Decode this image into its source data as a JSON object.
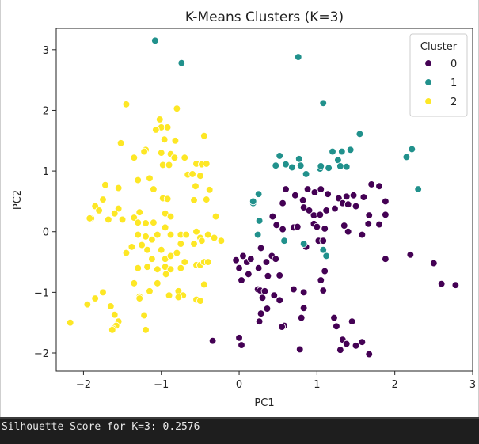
{
  "chart_data": {
    "type": "scatter",
    "title": "K-Means Clusters (K=3)",
    "xlabel": "PC1",
    "ylabel": "PC2",
    "xlim": [
      -2.35,
      3.0
    ],
    "ylim": [
      -2.3,
      3.35
    ],
    "xticks": [
      -2,
      -1,
      0,
      1,
      2,
      3
    ],
    "yticks": [
      -2,
      -1,
      0,
      1,
      2,
      3
    ],
    "grid": false,
    "legend": {
      "title": "Cluster",
      "position": "top-right"
    },
    "series": [
      {
        "name": "0",
        "color": "#440154",
        "points": [
          [
            0.6,
            0.7
          ],
          [
            0.72,
            0.6
          ],
          [
            0.82,
            0.52
          ],
          [
            0.88,
            0.7
          ],
          [
            0.97,
            0.65
          ],
          [
            1.05,
            0.7
          ],
          [
            1.14,
            0.62
          ],
          [
            1.28,
            0.55
          ],
          [
            1.38,
            0.58
          ],
          [
            1.47,
            0.6
          ],
          [
            1.6,
            0.57
          ],
          [
            1.7,
            0.78
          ],
          [
            1.8,
            0.75
          ],
          [
            1.88,
            0.5
          ],
          [
            1.88,
            0.28
          ],
          [
            0.56,
            0.47
          ],
          [
            0.83,
            0.4
          ],
          [
            0.9,
            0.35
          ],
          [
            0.96,
            0.27
          ],
          [
            1.04,
            0.28
          ],
          [
            1.12,
            0.35
          ],
          [
            1.23,
            0.38
          ],
          [
            1.33,
            0.47
          ],
          [
            1.4,
            0.45
          ],
          [
            1.5,
            0.42
          ],
          [
            1.67,
            0.27
          ],
          [
            1.35,
            0.1
          ],
          [
            1.66,
            0.13
          ],
          [
            1.8,
            0.12
          ],
          [
            0.43,
            0.25
          ],
          [
            0.48,
            0.11
          ],
          [
            0.56,
            0.04
          ],
          [
            0.7,
            0.07
          ],
          [
            0.75,
            0.08
          ],
          [
            0.96,
            0.13
          ],
          [
            1.0,
            0.08
          ],
          [
            1.1,
            0.05
          ],
          [
            1.4,
            0.0
          ],
          [
            1.58,
            -0.05
          ],
          [
            1.88,
            -0.45
          ],
          [
            2.2,
            -0.38
          ],
          [
            2.5,
            -0.52
          ],
          [
            2.6,
            -0.86
          ],
          [
            2.78,
            -0.88
          ],
          [
            1.02,
            -0.15
          ],
          [
            1.08,
            -0.15
          ],
          [
            0.86,
            -0.25
          ],
          [
            1.1,
            -0.65
          ],
          [
            1.05,
            -0.8
          ],
          [
            1.08,
            -0.97
          ],
          [
            0.28,
            -0.27
          ],
          [
            0.35,
            -0.5
          ],
          [
            0.25,
            -0.6
          ],
          [
            0.05,
            -0.4
          ],
          [
            0.1,
            -0.5
          ],
          [
            0.15,
            -0.45
          ],
          [
            0.0,
            -0.6
          ],
          [
            -0.04,
            -0.47
          ],
          [
            0.03,
            -0.8
          ],
          [
            0.12,
            -0.7
          ],
          [
            0.24,
            -0.95
          ],
          [
            0.27,
            -0.97
          ],
          [
            0.33,
            -0.98
          ],
          [
            0.42,
            -0.4
          ],
          [
            0.47,
            -0.45
          ],
          [
            0.37,
            -0.73
          ],
          [
            0.52,
            -0.72
          ],
          [
            0.3,
            -1.09
          ],
          [
            0.45,
            -1.05
          ],
          [
            0.52,
            -1.13
          ],
          [
            0.7,
            -0.95
          ],
          [
            0.83,
            -1.0
          ],
          [
            0.83,
            -1.26
          ],
          [
            0.8,
            -1.42
          ],
          [
            0.36,
            -1.27
          ],
          [
            0.28,
            -1.35
          ],
          [
            0.26,
            -1.48
          ],
          [
            0.58,
            -1.55
          ],
          [
            0.55,
            -1.57
          ],
          [
            0.0,
            -1.75
          ],
          [
            0.03,
            -1.87
          ],
          [
            -0.34,
            -1.8
          ],
          [
            0.78,
            -1.94
          ],
          [
            1.22,
            -1.42
          ],
          [
            1.25,
            -1.56
          ],
          [
            1.45,
            -1.48
          ],
          [
            1.33,
            -1.78
          ],
          [
            1.38,
            -1.85
          ],
          [
            1.5,
            -1.88
          ],
          [
            1.58,
            -1.82
          ],
          [
            1.3,
            -1.95
          ],
          [
            1.67,
            -2.02
          ]
        ]
      },
      {
        "name": "1",
        "color": "#21918c",
        "points": [
          [
            -1.08,
            3.15
          ],
          [
            -0.74,
            2.78
          ],
          [
            0.76,
            2.88
          ],
          [
            1.08,
            2.12
          ],
          [
            1.55,
            1.61
          ],
          [
            1.43,
            1.35
          ],
          [
            1.2,
            1.32
          ],
          [
            1.27,
            1.18
          ],
          [
            1.32,
            1.32
          ],
          [
            1.38,
            1.07
          ],
          [
            2.22,
            1.36
          ],
          [
            2.15,
            1.23
          ],
          [
            2.3,
            0.7
          ],
          [
            0.47,
            1.09
          ],
          [
            0.6,
            1.11
          ],
          [
            0.68,
            1.06
          ],
          [
            0.77,
            1.2
          ],
          [
            0.79,
            1.09
          ],
          [
            1.04,
            1.04
          ],
          [
            1.05,
            1.08
          ],
          [
            1.15,
            1.05
          ],
          [
            1.3,
            1.08
          ],
          [
            0.52,
            1.25
          ],
          [
            0.86,
            0.95
          ],
          [
            0.25,
            0.62
          ],
          [
            0.18,
            0.47
          ],
          [
            0.18,
            0.5
          ],
          [
            0.26,
            0.18
          ],
          [
            0.24,
            -0.05
          ],
          [
            0.58,
            -0.15
          ],
          [
            0.83,
            -0.2
          ],
          [
            1.08,
            -0.3
          ],
          [
            1.12,
            -0.4
          ]
        ]
      },
      {
        "name": "2",
        "color": "#fde725",
        "points": [
          [
            -1.45,
            2.1
          ],
          [
            -0.8,
            2.03
          ],
          [
            -1.02,
            1.85
          ],
          [
            -1.0,
            1.72
          ],
          [
            -0.92,
            1.72
          ],
          [
            -1.07,
            1.68
          ],
          [
            -1.52,
            1.46
          ],
          [
            -1.2,
            1.35
          ],
          [
            -1.22,
            1.32
          ],
          [
            -0.96,
            1.52
          ],
          [
            -0.82,
            1.5
          ],
          [
            -0.45,
            1.58
          ],
          [
            -1.35,
            1.22
          ],
          [
            -1.0,
            1.3
          ],
          [
            -0.88,
            1.28
          ],
          [
            -0.83,
            1.22
          ],
          [
            -0.98,
            1.1
          ],
          [
            -0.9,
            1.1
          ],
          [
            -0.7,
            1.22
          ],
          [
            -0.55,
            1.12
          ],
          [
            -0.48,
            1.11
          ],
          [
            -0.42,
            1.12
          ],
          [
            -0.66,
            0.94
          ],
          [
            -0.6,
            0.95
          ],
          [
            -0.5,
            0.92
          ],
          [
            -0.56,
            0.75
          ],
          [
            -1.72,
            0.77
          ],
          [
            -1.55,
            0.72
          ],
          [
            -1.3,
            0.85
          ],
          [
            -1.15,
            0.88
          ],
          [
            -1.1,
            0.7
          ],
          [
            -0.98,
            0.55
          ],
          [
            -0.92,
            0.54
          ],
          [
            -0.42,
            0.53
          ],
          [
            -0.38,
            0.69
          ],
          [
            -0.58,
            0.52
          ],
          [
            -1.75,
            0.53
          ],
          [
            -1.85,
            0.42
          ],
          [
            -1.8,
            0.35
          ],
          [
            -1.55,
            0.38
          ],
          [
            -1.6,
            0.3
          ],
          [
            -1.9,
            0.22
          ],
          [
            -1.92,
            0.22
          ],
          [
            -1.68,
            0.2
          ],
          [
            -1.5,
            0.2
          ],
          [
            -1.35,
            0.23
          ],
          [
            -1.28,
            0.32
          ],
          [
            -1.3,
            0.15
          ],
          [
            -1.2,
            0.14
          ],
          [
            -1.1,
            0.15
          ],
          [
            -0.95,
            0.3
          ],
          [
            -0.88,
            0.25
          ],
          [
            -0.95,
            0.07
          ],
          [
            -1.05,
            -0.05
          ],
          [
            -1.3,
            -0.05
          ],
          [
            -1.2,
            -0.08
          ],
          [
            -1.12,
            -0.13
          ],
          [
            -1.25,
            -0.22
          ],
          [
            -1.38,
            -0.25
          ],
          [
            -1.45,
            -0.35
          ],
          [
            -1.18,
            -0.3
          ],
          [
            -1.12,
            -0.45
          ],
          [
            -1.0,
            -0.3
          ],
          [
            -0.88,
            -0.05
          ],
          [
            -0.75,
            -0.05
          ],
          [
            -0.75,
            -0.2
          ],
          [
            -0.58,
            -0.2
          ],
          [
            -0.5,
            -0.1
          ],
          [
            -0.48,
            -0.15
          ],
          [
            -0.4,
            -0.05
          ],
          [
            -0.32,
            -0.1
          ],
          [
            -0.23,
            -0.15
          ],
          [
            -0.3,
            0.25
          ],
          [
            -0.55,
            0.0
          ],
          [
            -0.68,
            -0.05
          ],
          [
            -0.95,
            -0.45
          ],
          [
            -0.88,
            -0.4
          ],
          [
            -0.8,
            -0.35
          ],
          [
            -0.7,
            -0.5
          ],
          [
            -0.55,
            -0.55
          ],
          [
            -0.5,
            -0.55
          ],
          [
            -1.3,
            -0.6
          ],
          [
            -1.18,
            -0.58
          ],
          [
            -1.05,
            -0.62
          ],
          [
            -0.95,
            -0.58
          ],
          [
            -0.88,
            -0.62
          ],
          [
            -0.75,
            -0.6
          ],
          [
            -0.45,
            -0.5
          ],
          [
            -0.4,
            -0.5
          ],
          [
            -1.35,
            -0.85
          ],
          [
            -1.05,
            -0.85
          ],
          [
            -0.78,
            -0.98
          ],
          [
            -0.72,
            -1.05
          ],
          [
            -0.78,
            -1.08
          ],
          [
            -0.9,
            -1.05
          ],
          [
            -1.15,
            -0.98
          ],
          [
            -1.28,
            -1.07
          ],
          [
            -1.28,
            -1.1
          ],
          [
            -0.55,
            -1.12
          ],
          [
            -0.5,
            -1.14
          ],
          [
            -0.45,
            -0.87
          ],
          [
            -1.95,
            -1.2
          ],
          [
            -1.85,
            -1.1
          ],
          [
            -1.75,
            -1.0
          ],
          [
            -1.65,
            -1.23
          ],
          [
            -1.6,
            -1.37
          ],
          [
            -1.55,
            -1.48
          ],
          [
            -1.58,
            -1.55
          ],
          [
            -1.62,
            -1.6
          ],
          [
            -1.63,
            -1.62
          ],
          [
            -1.2,
            -1.62
          ],
          [
            -2.17,
            -1.5
          ],
          [
            -1.22,
            -1.38
          ],
          [
            -0.94,
            -0.7
          ]
        ]
      }
    ]
  },
  "console": {
    "text": "Silhouette Score for K=3: 0.2576"
  }
}
